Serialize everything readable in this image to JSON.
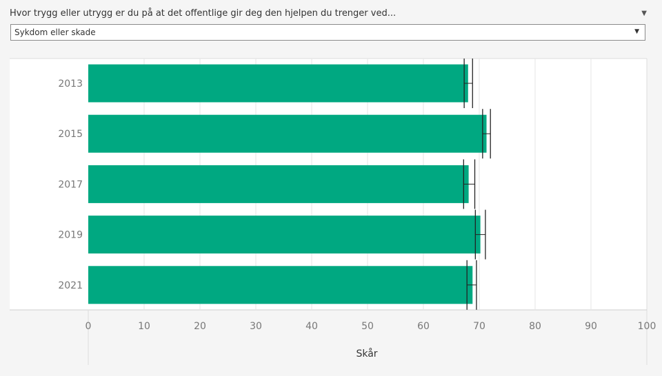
{
  "question": {
    "text": "Hvor trygg eller utrygg er du på at det offentlige gir deg den hjelpen du trenger ved...",
    "caret": "▼"
  },
  "filter": {
    "selected": "Sykdom eller skade",
    "caret": "▼"
  },
  "colors": {
    "bar": "#00a881",
    "error_bar": "#222222",
    "gridline": "#e6e6e6"
  },
  "chart_data": {
    "type": "bar",
    "orientation": "horizontal",
    "categories": [
      "2013",
      "2015",
      "2017",
      "2019",
      "2021"
    ],
    "values": [
      68.0,
      71.3,
      68.1,
      70.2,
      68.8
    ],
    "error_low": [
      67.3,
      70.6,
      67.2,
      69.3,
      67.8
    ],
    "error_high": [
      68.8,
      72.0,
      69.2,
      71.1,
      69.5
    ],
    "xlabel": "Skår",
    "xlim": [
      0,
      100
    ],
    "xticks": [
      "0",
      "10",
      "20",
      "30",
      "40",
      "50",
      "60",
      "70",
      "80",
      "90",
      "100"
    ],
    "grid": true,
    "legend": "none"
  }
}
